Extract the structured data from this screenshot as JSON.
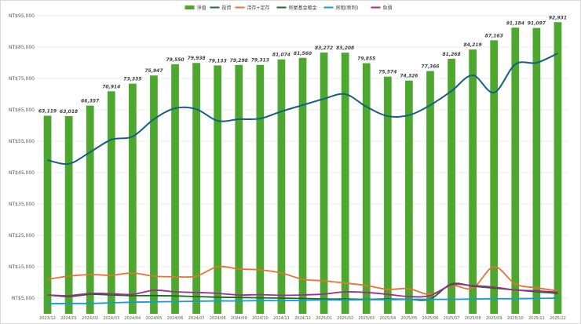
{
  "chart_data": {
    "type": "bar",
    "title": "",
    "xlabel": "",
    "ylabel": "",
    "ylim": [
      0,
      95000
    ],
    "y_ticks": [
      5000,
      15000,
      25000,
      35000,
      45000,
      55000,
      65000,
      75000,
      85000,
      95000
    ],
    "y_tick_labels": [
      "NT$5,000",
      "NT$15,000",
      "NT$25,000",
      "NT$35,000",
      "NT$45,000",
      "NT$55,000",
      "NT$65,000",
      "NT$75,000",
      "NT$85,000",
      "NT$95,000"
    ],
    "grid": true,
    "legend_position": "top-center",
    "categories": [
      "2023/12",
      "2024/01",
      "2024/02",
      "2024/03",
      "2024/04",
      "2024/05",
      "2024/06",
      "2024/07",
      "2024/08",
      "2024/09",
      "2024/10",
      "2024/11",
      "2024/12",
      "2025/01",
      "2025/02",
      "2025/03",
      "2025/04",
      "2025/05",
      "2025/06",
      "2025/07",
      "2025/08",
      "2025/09",
      "2025/10",
      "2025/11",
      "2025/12"
    ],
    "bar_labels": [
      "63,119",
      "63,018",
      "66,357",
      "70,914",
      "73,335",
      "75,947",
      "79,550",
      "79,938",
      "79,133",
      "79,298",
      "79,313",
      "81,074",
      "81,560",
      "83,272",
      "83,208",
      "79,855",
      "75,574",
      "74,326",
      "77,366",
      "81,268",
      "84,219",
      "87,163",
      "91,184",
      "91,097",
      "92,931"
    ],
    "series": [
      {
        "name": "淨值",
        "kind": "bar",
        "color": "#4ea72e",
        "values": [
          63119,
          63018,
          66357,
          70914,
          73335,
          75947,
          79550,
          79938,
          79133,
          79298,
          79313,
          81074,
          81560,
          83272,
          83208,
          79855,
          75574,
          74326,
          77366,
          81268,
          84219,
          87163,
          91184,
          91097,
          92931
        ]
      },
      {
        "name": "投資",
        "kind": "line",
        "color": "#156082",
        "values": [
          49000,
          47800,
          51500,
          55500,
          56500,
          62000,
          65500,
          65200,
          61500,
          62000,
          62200,
          64500,
          66500,
          68500,
          70000,
          66000,
          63000,
          63300,
          66500,
          71000,
          76000,
          70500,
          79500,
          80000,
          83000
        ]
      },
      {
        "name": "活存+定存",
        "kind": "line",
        "color": "#e97132",
        "values": [
          11000,
          12000,
          12500,
          12300,
          13000,
          12000,
          11800,
          12000,
          15000,
          14300,
          14000,
          13000,
          11000,
          10500,
          9800,
          9000,
          7800,
          8000,
          6200,
          9000,
          8200,
          15000,
          9500,
          8300,
          7300
        ]
      },
      {
        "name": "房屋基金贈金",
        "kind": "line",
        "color": "#196b24",
        "values": [
          6000,
          5500,
          6200,
          6000,
          5800,
          5800,
          5700,
          5500,
          5300,
          5200,
          5100,
          5000,
          4900,
          4700,
          4700,
          4600,
          4700,
          4600,
          4700,
          9500,
          8800,
          8200,
          7600,
          7000,
          6500
        ]
      },
      {
        "name": "房租(新制)",
        "kind": "line",
        "color": "#0f9ed5",
        "values": [
          3200,
          3300,
          3300,
          3500,
          3700,
          3800,
          3900,
          4000,
          4100,
          4100,
          4200,
          4200,
          4300,
          4400,
          4400,
          4500,
          4500,
          4600,
          4600,
          4600,
          4700,
          4800,
          4800,
          4900,
          5000
        ]
      },
      {
        "name": "負債",
        "kind": "line",
        "color": "#a02b93",
        "values": [
          6000,
          5800,
          6500,
          6400,
          6200,
          7500,
          7000,
          6800,
          6500,
          6000,
          6100,
          5900,
          6000,
          6300,
          7000,
          6800,
          6200,
          5500,
          5800,
          9200,
          9000,
          8500,
          7600,
          7300,
          6900
        ]
      }
    ]
  }
}
